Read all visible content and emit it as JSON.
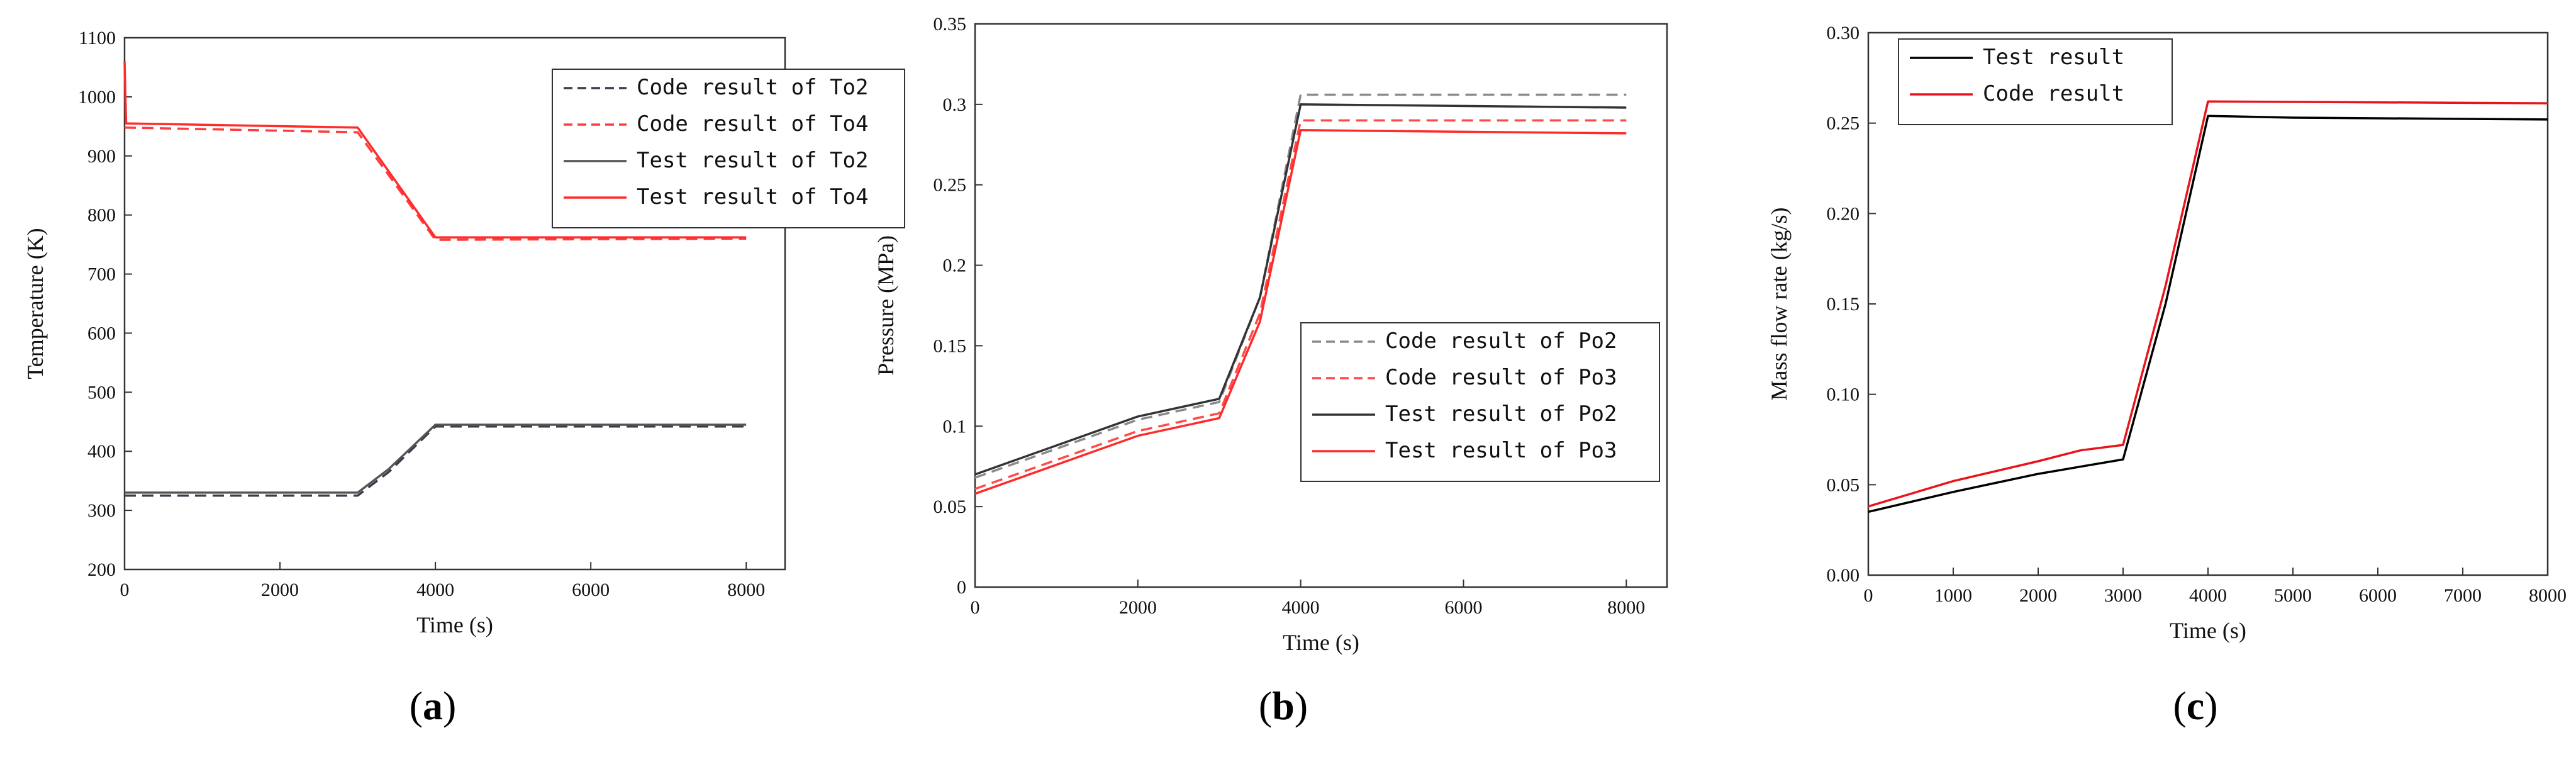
{
  "chart_data": [
    {
      "type": "line",
      "panel_label": "a",
      "xlabel": "Time (s)",
      "ylabel": "Temperature (K)",
      "xlim": [
        0,
        8500
      ],
      "ylim": [
        200,
        1100
      ],
      "xticks": [
        0,
        2000,
        4000,
        6000,
        8000
      ],
      "yticks": [
        200,
        300,
        400,
        500,
        600,
        700,
        800,
        900,
        1000,
        1100
      ],
      "legend_position": "top-right",
      "series": [
        {
          "name": "Code result of To2",
          "color": "#3a3a4a",
          "dash": "dashed",
          "points": [
            [
              0,
              325
            ],
            [
              3000,
              325
            ],
            [
              3400,
              365
            ],
            [
              4000,
              442
            ],
            [
              8000,
              442
            ]
          ]
        },
        {
          "name": "Code result of To4",
          "color": "#ff3b3b",
          "dash": "dashed",
          "points": [
            [
              0,
              948
            ],
            [
              3000,
              940
            ],
            [
              4000,
              758
            ],
            [
              8000,
              760
            ]
          ]
        },
        {
          "name": "Test result of To2",
          "color": "#555555",
          "dash": "solid",
          "points": [
            [
              0,
              330
            ],
            [
              3000,
              330
            ],
            [
              3400,
              370
            ],
            [
              4000,
              445
            ],
            [
              8000,
              445
            ]
          ]
        },
        {
          "name": "Test result of To4",
          "color": "#ff2a2a",
          "dash": "solid",
          "points": [
            [
              0,
              1060
            ],
            [
              20,
              955
            ],
            [
              3000,
              948
            ],
            [
              4000,
              762
            ],
            [
              8000,
              762
            ]
          ]
        }
      ]
    },
    {
      "type": "line",
      "panel_label": "b",
      "xlabel": "Time (s)",
      "ylabel": "Pressure (MPa)",
      "xlim": [
        0,
        8500
      ],
      "ylim": [
        0,
        0.35
      ],
      "xticks": [
        0,
        2000,
        4000,
        6000,
        8000
      ],
      "yticks": [
        0,
        0.05,
        0.1,
        0.15,
        0.2,
        0.25,
        0.3,
        0.35
      ],
      "ytick_labels": [
        "0",
        "0.05",
        "0.1",
        "0.15",
        "0.2",
        "0.25",
        "0.3",
        "0.35"
      ],
      "legend_position": "bottom-right",
      "series": [
        {
          "name": "Code result of Po2",
          "color": "#8a8a8a",
          "dash": "dashed",
          "points": [
            [
              0,
              0.068
            ],
            [
              2000,
              0.104
            ],
            [
              3000,
              0.115
            ],
            [
              3500,
              0.18
            ],
            [
              4000,
              0.306
            ],
            [
              8000,
              0.306
            ]
          ]
        },
        {
          "name": "Code result of Po3",
          "color": "#ff4a4a",
          "dash": "dashed",
          "points": [
            [
              0,
              0.061
            ],
            [
              2000,
              0.097
            ],
            [
              3000,
              0.108
            ],
            [
              3500,
              0.17
            ],
            [
              4000,
              0.29
            ],
            [
              8000,
              0.29
            ]
          ]
        },
        {
          "name": "Test result of Po2",
          "color": "#333333",
          "dash": "solid",
          "points": [
            [
              0,
              0.07
            ],
            [
              2000,
              0.106
            ],
            [
              3000,
              0.117
            ],
            [
              3500,
              0.18
            ],
            [
              4000,
              0.3
            ],
            [
              8000,
              0.298
            ]
          ]
        },
        {
          "name": "Test result of Po3",
          "color": "#ff2a2a",
          "dash": "solid",
          "points": [
            [
              0,
              0.058
            ],
            [
              2000,
              0.094
            ],
            [
              3000,
              0.105
            ],
            [
              3500,
              0.165
            ],
            [
              4000,
              0.284
            ],
            [
              8000,
              0.282
            ]
          ]
        }
      ]
    },
    {
      "type": "line",
      "panel_label": "c",
      "xlabel": "Time (s)",
      "ylabel": "Mass flow rate (kg/s)",
      "xlim": [
        0,
        8000
      ],
      "ylim": [
        0,
        0.3
      ],
      "xticks": [
        0,
        1000,
        2000,
        3000,
        4000,
        5000,
        6000,
        7000,
        8000
      ],
      "yticks": [
        0,
        0.05,
        0.1,
        0.15,
        0.2,
        0.25,
        0.3
      ],
      "ytick_labels": [
        "0.00",
        "0.05",
        "0.10",
        "0.15",
        "0.20",
        "0.25",
        "0.30"
      ],
      "legend_position": "top-left",
      "series": [
        {
          "name": "Test result",
          "color": "#000000",
          "dash": "solid",
          "points": [
            [
              0,
              0.035
            ],
            [
              1000,
              0.046
            ],
            [
              2000,
              0.056
            ],
            [
              3000,
              0.064
            ],
            [
              3500,
              0.15
            ],
            [
              4000,
              0.254
            ],
            [
              5000,
              0.253
            ],
            [
              8000,
              0.252
            ]
          ]
        },
        {
          "name": "Code result",
          "color": "#e8141c",
          "dash": "solid",
          "points": [
            [
              0,
              0.038
            ],
            [
              1000,
              0.052
            ],
            [
              2000,
              0.063
            ],
            [
              2500,
              0.069
            ],
            [
              3000,
              0.072
            ],
            [
              3500,
              0.16
            ],
            [
              4000,
              0.262
            ],
            [
              8000,
              0.261
            ]
          ]
        }
      ]
    }
  ]
}
